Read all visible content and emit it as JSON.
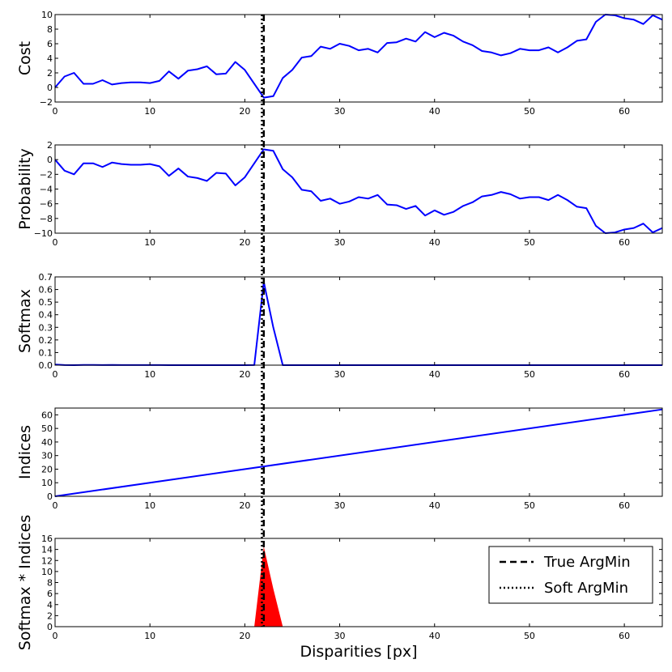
{
  "figure": {
    "xlabel": "Disparities [px]",
    "xlim": [
      0,
      64
    ],
    "xticks": [
      0,
      10,
      20,
      30,
      40,
      50,
      60
    ],
    "true_argmin": 22,
    "soft_argmin": 21.8,
    "line_color": "#0000ff",
    "fill_color": "#ff0000",
    "legend": {
      "placement": "upper-right",
      "entries": [
        {
          "label": "True ArgMin",
          "style": "dashed"
        },
        {
          "label": "Soft ArgMin",
          "style": "dotted"
        }
      ]
    }
  },
  "chart_data": [
    {
      "type": "line",
      "ylabel": "Cost",
      "ylim": [
        -2,
        10
      ],
      "yticks": [
        -2,
        0,
        2,
        4,
        6,
        8,
        10
      ],
      "x": [
        0,
        1,
        2,
        3,
        4,
        5,
        6,
        7,
        8,
        9,
        10,
        11,
        12,
        13,
        14,
        15,
        16,
        17,
        18,
        19,
        20,
        21,
        22,
        23,
        24,
        25,
        26,
        27,
        28,
        29,
        30,
        31,
        32,
        33,
        34,
        35,
        36,
        37,
        38,
        39,
        40,
        41,
        42,
        43,
        44,
        45,
        46,
        47,
        48,
        49,
        50,
        51,
        52,
        53,
        54,
        55,
        56,
        57,
        58,
        59,
        60,
        61,
        62,
        63,
        64
      ],
      "values": [
        0,
        1.5,
        2,
        0.5,
        0.5,
        1,
        0.4,
        0.6,
        0.7,
        0.7,
        0.6,
        0.9,
        2.2,
        1.2,
        2.3,
        2.5,
        2.9,
        1.8,
        1.9,
        3.5,
        2.4,
        0.5,
        -1.4,
        -1.2,
        1.3,
        2.4,
        4.1,
        4.3,
        5.6,
        5.3,
        6.0,
        5.7,
        5.1,
        5.3,
        4.8,
        6.1,
        6.2,
        6.7,
        6.3,
        7.6,
        6.9,
        7.5,
        7.1,
        6.3,
        5.8,
        5.0,
        4.8,
        4.4,
        4.7,
        5.3,
        5.1,
        5.1,
        5.5,
        4.8,
        5.5,
        6.4,
        6.6,
        9.0,
        10.0,
        9.9,
        9.5,
        9.3,
        8.7,
        9.9,
        9.3
      ]
    },
    {
      "type": "line",
      "ylabel": "Probability",
      "ylim": [
        -10,
        2
      ],
      "yticks": [
        -10,
        -8,
        -6,
        -4,
        -2,
        0,
        2
      ],
      "x": [
        0,
        1,
        2,
        3,
        4,
        5,
        6,
        7,
        8,
        9,
        10,
        11,
        12,
        13,
        14,
        15,
        16,
        17,
        18,
        19,
        20,
        21,
        22,
        23,
        24,
        25,
        26,
        27,
        28,
        29,
        30,
        31,
        32,
        33,
        34,
        35,
        36,
        37,
        38,
        39,
        40,
        41,
        42,
        43,
        44,
        45,
        46,
        47,
        48,
        49,
        50,
        51,
        52,
        53,
        54,
        55,
        56,
        57,
        58,
        59,
        60,
        61,
        62,
        63,
        64
      ],
      "values": [
        0,
        -1.5,
        -2,
        -0.5,
        -0.5,
        -1,
        -0.4,
        -0.6,
        -0.7,
        -0.7,
        -0.6,
        -0.9,
        -2.2,
        -1.2,
        -2.3,
        -2.5,
        -2.9,
        -1.8,
        -1.9,
        -3.5,
        -2.4,
        -0.5,
        1.4,
        1.2,
        -1.3,
        -2.4,
        -4.1,
        -4.3,
        -5.6,
        -5.3,
        -6.0,
        -5.7,
        -5.1,
        -5.3,
        -4.8,
        -6.1,
        -6.2,
        -6.7,
        -6.3,
        -7.6,
        -6.9,
        -7.5,
        -7.1,
        -6.3,
        -5.8,
        -5.0,
        -4.8,
        -4.4,
        -4.7,
        -5.3,
        -5.1,
        -5.1,
        -5.5,
        -4.8,
        -5.5,
        -6.4,
        -6.6,
        -9.0,
        -10.0,
        -9.9,
        -9.5,
        -9.3,
        -8.7,
        -9.9,
        -9.3
      ]
    },
    {
      "type": "line",
      "ylabel": "Softmax",
      "ylim": [
        0,
        0.7
      ],
      "yticks": [
        0.0,
        0.1,
        0.2,
        0.3,
        0.4,
        0.5,
        0.6,
        0.7
      ],
      "x": [
        0,
        1,
        2,
        3,
        4,
        5,
        6,
        7,
        8,
        9,
        10,
        11,
        12,
        13,
        14,
        15,
        16,
        17,
        18,
        19,
        20,
        21,
        22,
        23,
        24,
        25,
        26,
        27,
        28,
        29,
        30,
        31,
        32,
        33,
        34,
        35,
        36,
        37,
        38,
        39,
        40,
        41,
        42,
        43,
        44,
        45,
        46,
        47,
        48,
        49,
        50,
        51,
        52,
        53,
        54,
        55,
        56,
        57,
        58,
        59,
        60,
        61,
        62,
        63,
        64
      ],
      "values": [
        0.005,
        0.001,
        0,
        0.002,
        0.002,
        0.001,
        0.002,
        0.001,
        0.001,
        0.001,
        0.001,
        0.001,
        0,
        0,
        0,
        0,
        0,
        0,
        0,
        0,
        0,
        0.001,
        0.66,
        0.3,
        0,
        0,
        0,
        0,
        0,
        0,
        0,
        0,
        0,
        0,
        0,
        0,
        0,
        0,
        0,
        0,
        0,
        0,
        0,
        0,
        0,
        0,
        0,
        0,
        0,
        0,
        0,
        0,
        0,
        0,
        0,
        0,
        0,
        0,
        0,
        0,
        0,
        0,
        0,
        0,
        0
      ]
    },
    {
      "type": "line",
      "ylabel": "Indices",
      "ylim": [
        0,
        65
      ],
      "yticks": [
        0,
        10,
        20,
        30,
        40,
        50,
        60
      ],
      "x": [
        0,
        64
      ],
      "values": [
        0,
        64
      ]
    },
    {
      "type": "area",
      "ylabel": "Softmax * Indices",
      "ylim": [
        0,
        16
      ],
      "yticks": [
        0,
        2,
        4,
        6,
        8,
        10,
        12,
        14,
        16
      ],
      "x": [
        0,
        1,
        2,
        3,
        4,
        5,
        6,
        7,
        8,
        9,
        10,
        11,
        12,
        13,
        14,
        15,
        16,
        17,
        18,
        19,
        20,
        21,
        22,
        23,
        24,
        25,
        26,
        27,
        28,
        29,
        30,
        31,
        32,
        33,
        34,
        35,
        36,
        37,
        38,
        39,
        40,
        41,
        42,
        43,
        44,
        45,
        46,
        47,
        48,
        49,
        50,
        51,
        52,
        53,
        54,
        55,
        56,
        57,
        58,
        59,
        60,
        61,
        62,
        63,
        64
      ],
      "values": [
        0,
        0.001,
        0,
        0.006,
        0.008,
        0.005,
        0.012,
        0.007,
        0.008,
        0.009,
        0.01,
        0.011,
        0,
        0,
        0,
        0,
        0,
        0,
        0,
        0,
        0,
        0.02,
        14.5,
        6.9,
        0,
        0,
        0,
        0,
        0,
        0,
        0,
        0,
        0,
        0,
        0,
        0,
        0,
        0,
        0,
        0,
        0,
        0,
        0,
        0,
        0,
        0,
        0,
        0,
        0,
        0,
        0,
        0,
        0,
        0,
        0,
        0,
        0,
        0,
        0,
        0,
        0,
        0,
        0,
        0,
        0
      ]
    }
  ]
}
